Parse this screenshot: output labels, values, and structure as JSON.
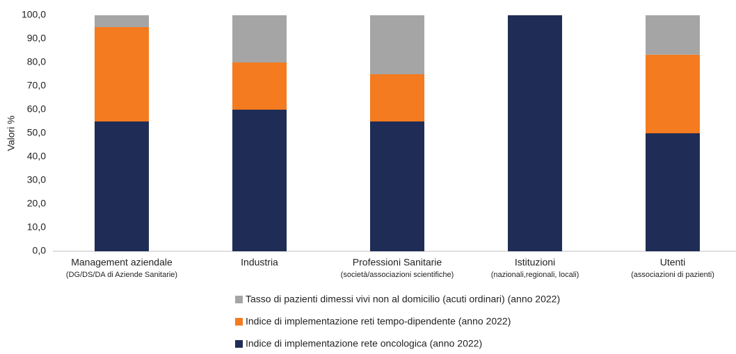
{
  "chart_data": {
    "type": "stacked_bar",
    "y_label": "Valori %",
    "categories": [
      "Management aziendale",
      "Industria",
      "Professioni Sanitarie",
      "Istituzioni",
      "Utenti"
    ],
    "category_sublabels": [
      "(DG/DS/DA di Aziende Sanitarie)",
      "",
      "(società/associazioni scientifiche)",
      "(nazionali,regionali, locali)",
      "(associazioni di pazienti)"
    ],
    "series": [
      {
        "name": "Indice di implementazione rete oncologica (anno 2022)",
        "color": "#1f2d56",
        "values": [
          55,
          60,
          55,
          100,
          50
        ]
      },
      {
        "name": "Indice di implementazione reti tempo-dipendente (anno 2022)",
        "color": "#f47b20",
        "values": [
          40,
          20,
          20,
          0,
          33.3
        ]
      },
      {
        "name": "Tasso di pazienti dimessi vivi non al domicilio (acuti ordinari) (anno 2022)",
        "color": "#a5a5a6",
        "values": [
          5,
          20,
          25,
          0,
          16.7
        ]
      }
    ],
    "ylim": [
      0,
      100
    ],
    "yticks": [
      {
        "value": 0,
        "label": "0,0"
      },
      {
        "value": 10,
        "label": "10,0"
      },
      {
        "value": 20,
        "label": "20,0"
      },
      {
        "value": 30,
        "label": "30,0"
      },
      {
        "value": 40,
        "label": "40,0"
      },
      {
        "value": 50,
        "label": "50,0"
      },
      {
        "value": 60,
        "label": "60,0"
      },
      {
        "value": 70,
        "label": "70,0"
      },
      {
        "value": 80,
        "label": "80,0"
      },
      {
        "value": 90,
        "label": "90,0"
      },
      {
        "value": 100,
        "label": "100,0"
      }
    ],
    "legend": "bottom",
    "grid": false
  }
}
